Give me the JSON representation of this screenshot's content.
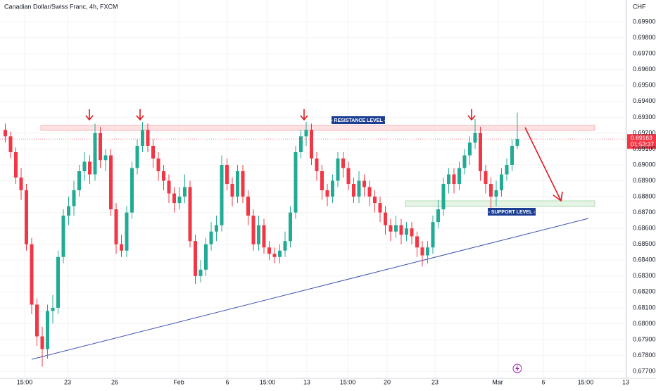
{
  "chart_data": {
    "type": "candlestick",
    "title": "Canadian Dollar/Swiss Franc, 4h, FXCM",
    "currency": "CHF",
    "countdown": "01:53:37",
    "up_color": "#22ab94",
    "down_color": "#f23645",
    "annotations": {
      "resistance": "- RESISTANCE LEVEL -",
      "support": "- SUPPORT LEVEL -"
    },
    "ylim": [
      0.67656,
      0.70038
    ],
    "yticks": [
      {
        "value": 0.677,
        "label": "0.67700"
      },
      {
        "value": 0.678,
        "label": "0.67800"
      },
      {
        "value": 0.679,
        "label": "0.67900"
      },
      {
        "value": 0.68,
        "label": "0.68000"
      },
      {
        "value": 0.681,
        "label": "0.68100"
      },
      {
        "value": 0.682,
        "label": "0.68200"
      },
      {
        "value": 0.683,
        "label": "0.68300"
      },
      {
        "value": 0.684,
        "label": "0.68400"
      },
      {
        "value": 0.685,
        "label": "0.68500"
      },
      {
        "value": 0.686,
        "label": "0.68600"
      },
      {
        "value": 0.687,
        "label": "0.68700"
      },
      {
        "value": 0.688,
        "label": "0.68800"
      },
      {
        "value": 0.689,
        "label": "0.68900"
      },
      {
        "value": 0.69,
        "label": "0.69000"
      },
      {
        "value": 0.691,
        "label": "0.69100"
      },
      {
        "value": 0.692,
        "label": "0.69200"
      },
      {
        "value": 0.693,
        "label": "0.69300"
      },
      {
        "value": 0.694,
        "label": "0.69400"
      },
      {
        "value": 0.695,
        "label": "0.69500"
      },
      {
        "value": 0.696,
        "label": "0.69600"
      },
      {
        "value": 0.697,
        "label": "0.69700"
      },
      {
        "value": 0.698,
        "label": "0.69800"
      },
      {
        "value": 0.699,
        "label": "0.69900"
      }
    ],
    "xlim": [
      -1,
      117.67
    ],
    "xticks": [
      {
        "value": 3.67,
        "label": "15:00"
      },
      {
        "value": 11.8,
        "label": "23"
      },
      {
        "value": 20.73,
        "label": "26"
      },
      {
        "value": 32.87,
        "label": "Feb"
      },
      {
        "value": 42.07,
        "label": "6"
      },
      {
        "value": 49.67,
        "label": "15:00"
      },
      {
        "value": 57.13,
        "label": "13"
      },
      {
        "value": 64.87,
        "label": "15:00"
      },
      {
        "value": 72.33,
        "label": "20"
      },
      {
        "value": 81.4,
        "label": "23"
      },
      {
        "value": 93.27,
        "label": "Mar"
      },
      {
        "value": 101.93,
        "label": "6"
      },
      {
        "value": 109.93,
        "label": "15:00"
      },
      {
        "value": 117.53,
        "label": "13"
      }
    ],
    "open": [
      0.6922,
      0.6918,
      0.6908,
      0.6892,
      0.6884,
      0.685,
      0.6812,
      0.6792,
      0.6784,
      0.6808,
      0.681,
      0.6842,
      0.6868,
      0.6874,
      0.6884,
      0.6896,
      0.6902,
      0.6894,
      0.692,
      0.6903,
      0.6906,
      0.6872,
      0.685,
      0.6846,
      0.687,
      0.6898,
      0.6912,
      0.6922,
      0.6912,
      0.6904,
      0.6896,
      0.689,
      0.6882,
      0.6876,
      0.688,
      0.6886,
      0.6852,
      0.683,
      0.6834,
      0.685,
      0.6858,
      0.6862,
      0.69,
      0.6888,
      0.688,
      0.6896,
      0.688,
      0.6868,
      0.685,
      0.6862,
      0.6848,
      0.6844,
      0.6842,
      0.6846,
      0.6852,
      0.687,
      0.6908,
      0.6918,
      0.6922,
      0.6904,
      0.6896,
      0.6884,
      0.688,
      0.689,
      0.6904,
      0.6898,
      0.6888,
      0.688,
      0.689,
      0.6886,
      0.688,
      0.6876,
      0.687,
      0.6862,
      0.6858,
      0.6862,
      0.6856,
      0.686,
      0.6855,
      0.6848,
      0.6843,
      0.6848,
      0.6864,
      0.6872,
      0.6888,
      0.6894,
      0.6888,
      0.6898,
      0.6906,
      0.6914,
      0.692,
      0.6896,
      0.6888,
      0.688,
      0.6884,
      0.6894,
      0.69,
      0.6912
    ],
    "high": [
      0.6926,
      0.6921,
      0.6911,
      0.6898,
      0.6888,
      0.6854,
      0.6816,
      0.6798,
      0.6812,
      0.6818,
      0.6846,
      0.6872,
      0.688,
      0.689,
      0.69,
      0.6908,
      0.6906,
      0.6926,
      0.6924,
      0.691,
      0.691,
      0.6876,
      0.6856,
      0.6874,
      0.6902,
      0.6916,
      0.6927,
      0.6926,
      0.6916,
      0.6908,
      0.69,
      0.6894,
      0.6886,
      0.6886,
      0.6894,
      0.689,
      0.6856,
      0.684,
      0.6854,
      0.6864,
      0.6868,
      0.6906,
      0.6904,
      0.6892,
      0.69,
      0.69,
      0.6884,
      0.6872,
      0.6868,
      0.6866,
      0.6852,
      0.6848,
      0.685,
      0.6858,
      0.6874,
      0.6912,
      0.6922,
      0.6927,
      0.6926,
      0.6908,
      0.69,
      0.6888,
      0.6894,
      0.6908,
      0.6908,
      0.6902,
      0.6892,
      0.6896,
      0.6894,
      0.689,
      0.6884,
      0.688,
      0.6874,
      0.6866,
      0.6868,
      0.6866,
      0.6864,
      0.6864,
      0.6858,
      0.6852,
      0.6852,
      0.6868,
      0.6878,
      0.6892,
      0.6898,
      0.6898,
      0.6902,
      0.691,
      0.6918,
      0.6929,
      0.6924,
      0.69,
      0.6892,
      0.689,
      0.6898,
      0.6904,
      0.6916,
      0.6933
    ],
    "low": [
      0.6914,
      0.6904,
      0.6888,
      0.6878,
      0.6846,
      0.6806,
      0.6786,
      0.6773,
      0.6778,
      0.68,
      0.6806,
      0.6838,
      0.6862,
      0.6868,
      0.688,
      0.689,
      0.6888,
      0.689,
      0.6898,
      0.6896,
      0.6868,
      0.6844,
      0.6842,
      0.6842,
      0.6866,
      0.6894,
      0.6908,
      0.6908,
      0.6898,
      0.689,
      0.6884,
      0.6876,
      0.687,
      0.6872,
      0.6876,
      0.6848,
      0.6825,
      0.6826,
      0.683,
      0.6846,
      0.6852,
      0.6858,
      0.6884,
      0.6874,
      0.6876,
      0.6876,
      0.6862,
      0.6846,
      0.6846,
      0.6844,
      0.684,
      0.6838,
      0.6838,
      0.6842,
      0.6848,
      0.6866,
      0.6904,
      0.6912,
      0.69,
      0.689,
      0.6878,
      0.6874,
      0.6876,
      0.6886,
      0.6892,
      0.6884,
      0.6876,
      0.6876,
      0.688,
      0.6874,
      0.687,
      0.6864,
      0.6856,
      0.6852,
      0.6854,
      0.685,
      0.6852,
      0.685,
      0.6842,
      0.6836,
      0.6838,
      0.6844,
      0.686,
      0.6868,
      0.6882,
      0.6882,
      0.6884,
      0.6894,
      0.69,
      0.691,
      0.689,
      0.6882,
      0.687,
      0.6874,
      0.688,
      0.689,
      0.6896,
      0.691
    ],
    "close": [
      0.6918,
      0.6908,
      0.6892,
      0.6884,
      0.685,
      0.6812,
      0.6792,
      0.6784,
      0.6808,
      0.681,
      0.6842,
      0.6868,
      0.6874,
      0.6884,
      0.6896,
      0.6902,
      0.6894,
      0.692,
      0.6903,
      0.6906,
      0.6872,
      0.685,
      0.6846,
      0.687,
      0.6898,
      0.6912,
      0.6922,
      0.6912,
      0.6904,
      0.6896,
      0.689,
      0.6882,
      0.6876,
      0.688,
      0.6886,
      0.6852,
      0.683,
      0.6834,
      0.685,
      0.6858,
      0.6862,
      0.69,
      0.6888,
      0.688,
      0.6896,
      0.688,
      0.6868,
      0.685,
      0.6862,
      0.6848,
      0.6844,
      0.6842,
      0.6846,
      0.6852,
      0.687,
      0.6908,
      0.6918,
      0.6922,
      0.6904,
      0.6896,
      0.6884,
      0.688,
      0.689,
      0.6904,
      0.6898,
      0.6888,
      0.688,
      0.689,
      0.6886,
      0.688,
      0.6876,
      0.687,
      0.6862,
      0.6858,
      0.6862,
      0.6856,
      0.686,
      0.6855,
      0.6848,
      0.6843,
      0.6848,
      0.6864,
      0.6872,
      0.6888,
      0.6894,
      0.6888,
      0.6898,
      0.6906,
      0.6914,
      0.692,
      0.6896,
      0.6888,
      0.688,
      0.6884,
      0.6894,
      0.69,
      0.6912,
      0.69163
    ]
  }
}
